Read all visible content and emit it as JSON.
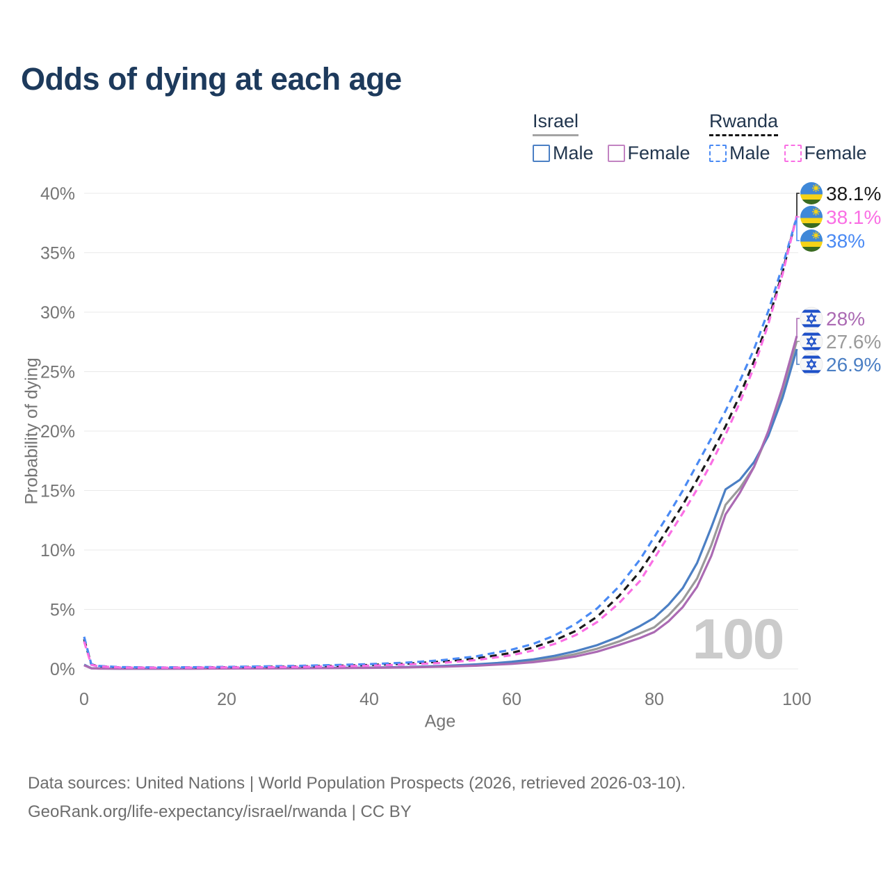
{
  "title": "Odds of dying at each age",
  "watermark": "100",
  "axes": {
    "x_label": "Age",
    "y_label": "Probability of dying"
  },
  "legend": {
    "groups": [
      {
        "name": "Israel",
        "underline_style": "solid",
        "underline_color": "#a3a3a3",
        "items": [
          {
            "label": "Male",
            "color": "#4b7fc4",
            "dashed": false
          },
          {
            "label": "Female",
            "color": "#c283c2",
            "dashed": false
          }
        ]
      },
      {
        "name": "Rwanda",
        "underline_style": "dashed",
        "underline_color": "#141414",
        "items": [
          {
            "label": "Male",
            "color": "#4a8af4",
            "dashed": true
          },
          {
            "label": "Female",
            "color": "#fa6fe4",
            "dashed": true
          }
        ]
      }
    ]
  },
  "chart_data": {
    "type": "line",
    "title": "Odds of dying at each age",
    "xlabel": "Age",
    "ylabel": "Probability of dying",
    "xlim": [
      0,
      100
    ],
    "ylim": [
      0,
      40
    ],
    "grid": "horizontal",
    "unit": "%",
    "legend_position": "top-right",
    "x_ticks": [
      {
        "v": 0,
        "label": "0"
      },
      {
        "v": 20,
        "label": "20"
      },
      {
        "v": 40,
        "label": "40"
      },
      {
        "v": 60,
        "label": "60"
      },
      {
        "v": 80,
        "label": "80"
      },
      {
        "v": 100,
        "label": "100"
      }
    ],
    "y_ticks": [
      {
        "v": 0,
        "label": "0%"
      },
      {
        "v": 5,
        "label": "5%"
      },
      {
        "v": 10,
        "label": "10%"
      },
      {
        "v": 15,
        "label": "15%"
      },
      {
        "v": 20,
        "label": "20%"
      },
      {
        "v": 25,
        "label": "25%"
      },
      {
        "v": 30,
        "label": "30%"
      },
      {
        "v": 35,
        "label": "35%"
      },
      {
        "v": 40,
        "label": "40%"
      }
    ],
    "ages": [
      0,
      1,
      2,
      5,
      10,
      15,
      20,
      25,
      30,
      35,
      40,
      45,
      50,
      55,
      58,
      60,
      63,
      66,
      69,
      72,
      75,
      78,
      80,
      82,
      84,
      86,
      88,
      90,
      92,
      94,
      96,
      98,
      100
    ],
    "series": [
      {
        "name": "Israel Combined",
        "country": "Israel",
        "color": "#9a9a9a",
        "dash": false,
        "end_label": "27.6%",
        "flag": "israel",
        "label_group": "israel",
        "label_row": 1,
        "values": [
          0.32,
          0.05,
          0.03,
          0.02,
          0.02,
          0.03,
          0.04,
          0.05,
          0.06,
          0.08,
          0.1,
          0.14,
          0.21,
          0.32,
          0.42,
          0.5,
          0.67,
          0.92,
          1.25,
          1.7,
          2.3,
          3.0,
          3.5,
          4.5,
          5.8,
          7.6,
          10.4,
          13.8,
          15.2,
          17.0,
          19.8,
          23.3,
          27.6
        ]
      },
      {
        "name": "Israel Male",
        "country": "Israel",
        "color": "#4b7fc4",
        "dash": false,
        "end_label": "26.9%",
        "flag": "israel",
        "label_group": "israel",
        "label_row": 2,
        "values": [
          0.35,
          0.06,
          0.04,
          0.02,
          0.02,
          0.03,
          0.05,
          0.06,
          0.07,
          0.09,
          0.11,
          0.16,
          0.24,
          0.38,
          0.5,
          0.6,
          0.8,
          1.1,
          1.5,
          2.0,
          2.7,
          3.6,
          4.3,
          5.4,
          6.8,
          8.9,
          11.9,
          15.1,
          15.9,
          17.4,
          19.6,
          22.8,
          26.9
        ]
      },
      {
        "name": "Israel Female",
        "country": "Israel",
        "color": "#ab6ab3",
        "dash": false,
        "end_label": "28%",
        "flag": "israel",
        "label_group": "israel",
        "label_row": 0,
        "values": [
          0.3,
          0.05,
          0.03,
          0.015,
          0.015,
          0.02,
          0.03,
          0.04,
          0.05,
          0.07,
          0.09,
          0.12,
          0.18,
          0.27,
          0.36,
          0.42,
          0.56,
          0.77,
          1.05,
          1.45,
          2.0,
          2.6,
          3.1,
          4.0,
          5.2,
          6.9,
          9.5,
          13.0,
          14.8,
          17.0,
          20.0,
          23.7,
          28.0
        ]
      },
      {
        "name": "Rwanda Combined",
        "country": "Rwanda",
        "color": "#1a1a1a",
        "dash": true,
        "end_label": "38.1%",
        "flag": "rwanda",
        "label_group": "rwanda",
        "label_row": 0,
        "values": [
          2.5,
          0.37,
          0.23,
          0.13,
          0.11,
          0.12,
          0.14,
          0.17,
          0.21,
          0.26,
          0.33,
          0.43,
          0.6,
          0.88,
          1.15,
          1.35,
          1.8,
          2.4,
          3.2,
          4.4,
          6.1,
          8.2,
          10.0,
          11.9,
          13.8,
          15.9,
          18.1,
          20.4,
          23.0,
          25.9,
          29.3,
          33.4,
          38.1
        ]
      },
      {
        "name": "Rwanda Male",
        "country": "Rwanda",
        "color": "#4a8af4",
        "dash": true,
        "end_label": "38%",
        "flag": "rwanda",
        "label_group": "rwanda",
        "label_row": 2,
        "values": [
          2.7,
          0.4,
          0.25,
          0.15,
          0.12,
          0.14,
          0.17,
          0.21,
          0.26,
          0.32,
          0.4,
          0.52,
          0.72,
          1.05,
          1.4,
          1.62,
          2.1,
          2.8,
          3.8,
          5.1,
          6.9,
          9.2,
          11.1,
          13.0,
          15.0,
          17.2,
          19.4,
          21.7,
          24.2,
          26.9,
          30.1,
          33.9,
          38.0
        ]
      },
      {
        "name": "Rwanda Female",
        "country": "Rwanda",
        "color": "#fa6fe4",
        "dash": true,
        "end_label": "38.1%",
        "flag": "rwanda",
        "label_group": "rwanda",
        "label_row": 1,
        "values": [
          2.3,
          0.34,
          0.21,
          0.12,
          0.1,
          0.11,
          0.12,
          0.14,
          0.17,
          0.21,
          0.27,
          0.36,
          0.5,
          0.74,
          0.98,
          1.15,
          1.55,
          2.1,
          2.85,
          3.95,
          5.5,
          7.4,
          9.3,
          11.2,
          13.1,
          15.1,
          17.3,
          19.7,
          22.4,
          25.4,
          29.0,
          33.2,
          38.1
        ]
      }
    ]
  },
  "footer": {
    "line1": "Data sources: United Nations | World Population Prospects (2026, retrieved 2026-03-10).",
    "line2": "GeoRank.org/life-expectancy/israel/rwanda | CC BY"
  }
}
